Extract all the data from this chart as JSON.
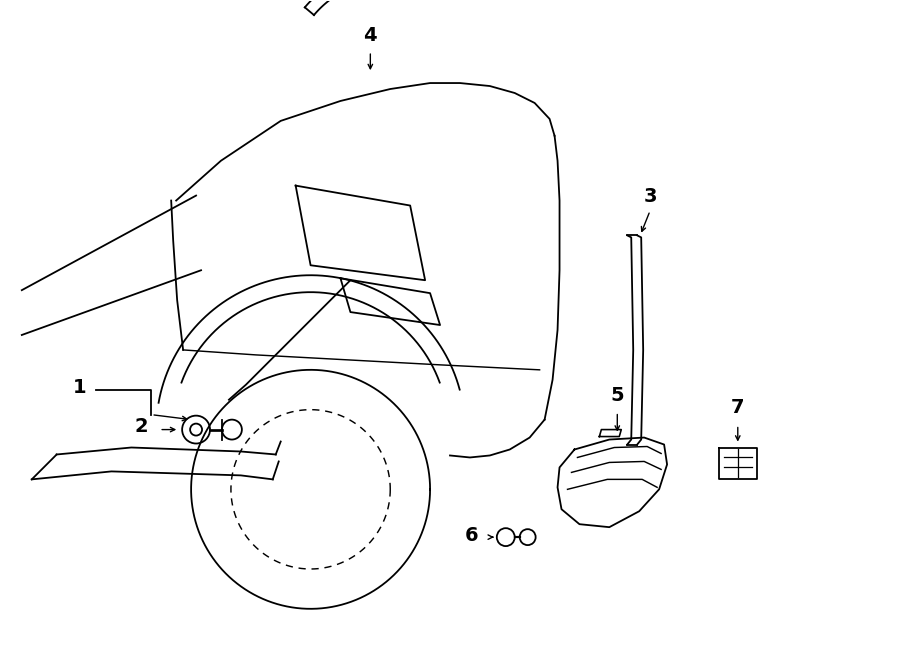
{
  "bg_color": "#ffffff",
  "line_color": "#000000",
  "lw": 1.3,
  "figsize": [
    9.0,
    6.61
  ],
  "dpi": 100,
  "label_fontsize": 13
}
